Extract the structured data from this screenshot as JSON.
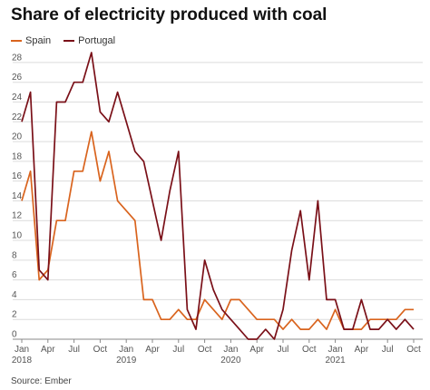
{
  "chart_data": {
    "type": "line",
    "title": "Share of electricity produced with coal",
    "xlabel": "",
    "ylabel": "",
    "ylim": [
      0,
      29
    ],
    "yticks": [
      0,
      2,
      4,
      6,
      8,
      10,
      12,
      14,
      16,
      18,
      20,
      22,
      24,
      26,
      28
    ],
    "grid": true,
    "legend": "top-left",
    "x": [
      "2018-01",
      "2018-02",
      "2018-03",
      "2018-04",
      "2018-05",
      "2018-06",
      "2018-07",
      "2018-08",
      "2018-09",
      "2018-10",
      "2018-11",
      "2018-12",
      "2019-01",
      "2019-02",
      "2019-03",
      "2019-04",
      "2019-05",
      "2019-06",
      "2019-07",
      "2019-08",
      "2019-09",
      "2019-10",
      "2019-11",
      "2019-12",
      "2020-01",
      "2020-02",
      "2020-03",
      "2020-04",
      "2020-05",
      "2020-06",
      "2020-07",
      "2020-08",
      "2020-09",
      "2020-10",
      "2020-11",
      "2020-12",
      "2021-01",
      "2021-02",
      "2021-03",
      "2021-04",
      "2021-05",
      "2021-06",
      "2021-07",
      "2021-08",
      "2021-09",
      "2021-10"
    ],
    "x_tick_labels": [
      {
        "label": "Jan",
        "year": "2018"
      },
      {
        "label": "Apr",
        "year": ""
      },
      {
        "label": "Jul",
        "year": ""
      },
      {
        "label": "Oct",
        "year": ""
      },
      {
        "label": "Jan",
        "year": "2019"
      },
      {
        "label": "Apr",
        "year": ""
      },
      {
        "label": "Jul",
        "year": ""
      },
      {
        "label": "Oct",
        "year": ""
      },
      {
        "label": "Jan",
        "year": "2020"
      },
      {
        "label": "Apr",
        "year": ""
      },
      {
        "label": "Jul",
        "year": ""
      },
      {
        "label": "Oct",
        "year": ""
      },
      {
        "label": "Jan",
        "year": "2021"
      },
      {
        "label": "Apr",
        "year": ""
      },
      {
        "label": "Jul",
        "year": ""
      },
      {
        "label": "Oct",
        "year": ""
      }
    ],
    "series": [
      {
        "name": "Spain",
        "color": "#d9641e",
        "values": [
          14,
          17,
          6,
          7,
          12,
          12,
          17,
          17,
          21,
          16,
          19,
          14,
          13,
          12,
          4,
          4,
          2,
          2,
          3,
          2,
          2,
          4,
          3,
          2,
          4,
          4,
          3,
          2,
          2,
          2,
          1,
          2,
          1,
          1,
          2,
          1,
          3,
          1,
          1,
          1,
          2,
          2,
          2,
          2,
          3,
          3
        ]
      },
      {
        "name": "Portugal",
        "color": "#7a1018",
        "values": [
          22,
          25,
          7,
          6,
          24,
          24,
          26,
          26,
          29,
          23,
          22,
          25,
          22,
          19,
          18,
          14,
          10,
          15,
          19,
          3,
          1,
          8,
          5,
          3,
          2,
          1,
          0,
          0,
          1,
          0,
          3,
          9,
          13,
          6,
          14,
          4,
          4,
          1,
          1,
          4,
          1,
          1,
          2,
          1,
          2,
          1
        ]
      }
    ],
    "source": "Source: Ember"
  }
}
